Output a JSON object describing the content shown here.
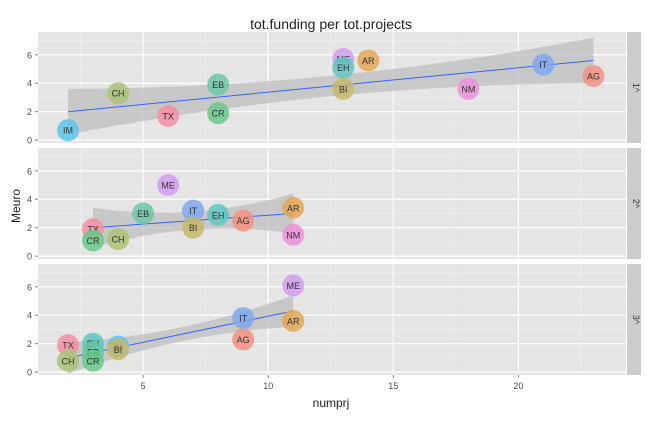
{
  "chart_data": {
    "type": "scatter",
    "title": "tot.funding per tot.projects",
    "xlabel": "numprj",
    "ylabel": "Meuro",
    "xlim": [
      0.8,
      24.3
    ],
    "ylim": [
      -0.2,
      7.6
    ],
    "x_ticks": [
      5,
      10,
      15,
      20
    ],
    "y_ticks": [
      0,
      2,
      4,
      6
    ],
    "grid": true,
    "legend": "none",
    "colors": {
      "panel_bg": "#e5e5e5",
      "grid_major": "#ffffff",
      "grid_minor": "#f2f2f2",
      "strip_bg": "#cccccc",
      "trend_line": "#3366ff",
      "ribbon": "#bdbdbd",
      "text": "#222222",
      "tick_text": "#4d4d4d"
    },
    "groups": {
      "IM": "#5bc6f0",
      "TX": "#f58ea3",
      "CH": "#a9c373",
      "EB": "#6cc7a6",
      "CR": "#69c889",
      "ME": "#d39bf0",
      "EH": "#5ec7bf",
      "AR": "#e3a857",
      "BI": "#c7b96a",
      "NM": "#ec8fd9",
      "IT": "#7fa7ee",
      "AG": "#f39181"
    },
    "panels": [
      {
        "strip": "1^",
        "trend": {
          "x": [
            2,
            23
          ],
          "y": [
            2.0,
            5.6
          ],
          "ci_low": [
            0.7,
            4.0
          ],
          "ci_high": [
            3.3,
            7.2
          ]
        },
        "points": [
          {
            "label": "IM",
            "x": 2,
            "y": 0.7
          },
          {
            "label": "TX",
            "x": 6,
            "y": 1.7
          },
          {
            "label": "CH",
            "x": 4,
            "y": 3.3
          },
          {
            "label": "EB",
            "x": 8,
            "y": 3.9
          },
          {
            "label": "CR",
            "x": 8,
            "y": 1.9
          },
          {
            "label": "ME",
            "x": 13,
            "y": 5.7
          },
          {
            "label": "EH",
            "x": 13,
            "y": 5.1
          },
          {
            "label": "AR",
            "x": 14,
            "y": 5.6
          },
          {
            "label": "BI",
            "x": 13,
            "y": 3.6
          },
          {
            "label": "NM",
            "x": 18,
            "y": 3.6
          },
          {
            "label": "IT",
            "x": 21,
            "y": 5.3
          },
          {
            "label": "AG",
            "x": 23,
            "y": 4.5
          }
        ]
      },
      {
        "strip": "2^",
        "trend": {
          "x": [
            3,
            11
          ],
          "y": [
            2.0,
            3.0
          ],
          "ci_low": [
            0.7,
            1.6
          ],
          "ci_high": [
            3.4,
            4.4
          ]
        },
        "points": [
          {
            "label": "ME",
            "x": 6,
            "y": 5.0
          },
          {
            "label": "EB",
            "x": 5,
            "y": 3.0
          },
          {
            "label": "IT",
            "x": 7,
            "y": 3.2
          },
          {
            "label": "EH",
            "x": 8,
            "y": 2.9
          },
          {
            "label": "AR",
            "x": 11,
            "y": 3.4
          },
          {
            "label": "AG",
            "x": 9,
            "y": 2.5
          },
          {
            "label": "BI",
            "x": 7,
            "y": 2.0
          },
          {
            "label": "TX",
            "x": 3,
            "y": 1.9
          },
          {
            "label": "CR",
            "x": 3,
            "y": 1.1
          },
          {
            "label": "CH",
            "x": 4,
            "y": 1.2
          },
          {
            "label": "NM",
            "x": 11,
            "y": 1.5
          }
        ]
      },
      {
        "strip": "3^",
        "trend": {
          "x": [
            2,
            11
          ],
          "y": [
            1.0,
            4.3
          ],
          "ci_low": [
            0.3,
            3.2
          ],
          "ci_high": [
            1.7,
            5.4
          ]
        },
        "points": [
          {
            "label": "ME",
            "x": 11,
            "y": 6.1
          },
          {
            "label": "IT",
            "x": 9,
            "y": 3.8
          },
          {
            "label": "AR",
            "x": 11,
            "y": 3.6
          },
          {
            "label": "AG",
            "x": 9,
            "y": 2.3
          },
          {
            "label": "TX",
            "x": 2,
            "y": 1.9
          },
          {
            "label": "EH",
            "x": 3,
            "y": 2.0
          },
          {
            "label": "EB",
            "x": 3,
            "y": 1.4
          },
          {
            "label": "IM",
            "x": 4,
            "y": 1.8
          },
          {
            "label": "BI",
            "x": 4,
            "y": 1.6
          },
          {
            "label": "CH",
            "x": 2,
            "y": 0.8
          },
          {
            "label": "CR",
            "x": 3,
            "y": 0.8
          }
        ]
      }
    ]
  }
}
